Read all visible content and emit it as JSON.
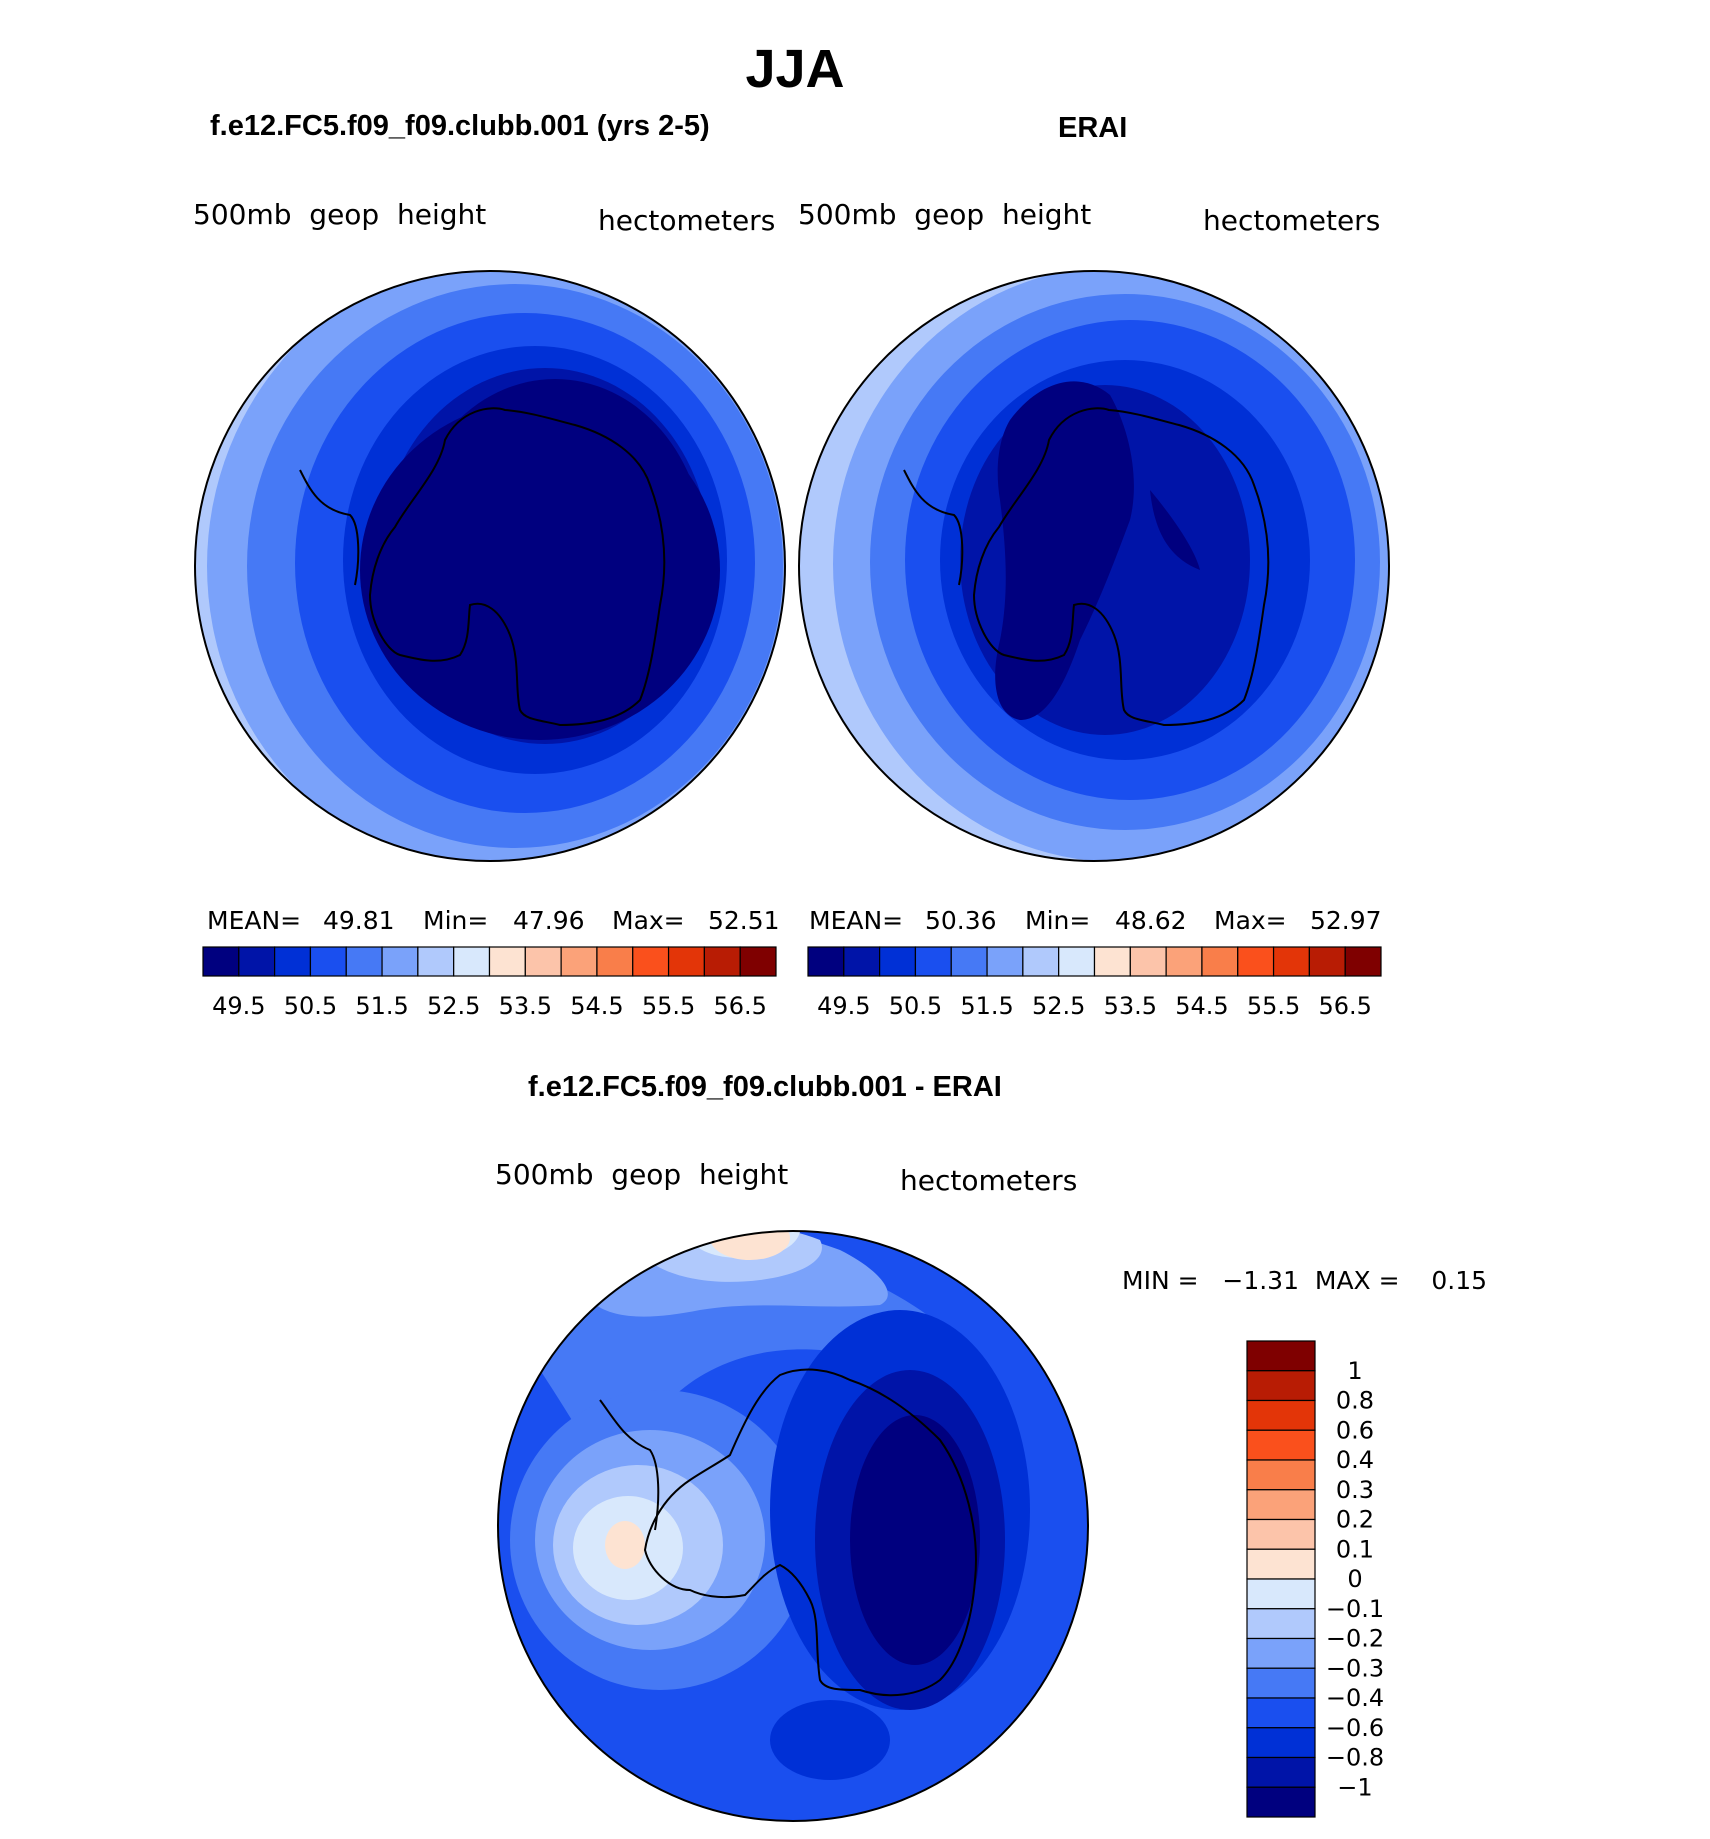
{
  "title": "JJA",
  "panels": [
    {
      "heading": "f.e12.FC5.f09_f09.clubb.001 (yrs 2-5)",
      "variable": "500mb  geop  height",
      "units": "hectometers",
      "stats": {
        "mean_label": "MEAN=",
        "mean": "49.81",
        "min_label": "Min=",
        "min": "47.96",
        "max_label": "Max=",
        "max": "52.51"
      }
    },
    {
      "heading": "ERAI",
      "variable": "500mb  geop  height",
      "units": "hectometers",
      "stats": {
        "mean_label": "MEAN=",
        "mean": "50.36",
        "min_label": "Min=",
        "min": "48.62",
        "max_label": "Max=",
        "max": "52.97"
      }
    }
  ],
  "diff_panel": {
    "heading": "f.e12.FC5.f09_f09.clubb.001 - ERAI",
    "variable": "500mb  geop  height",
    "units": "hectometers",
    "minmax": "MIN =   −1.31  MAX =    0.15"
  },
  "colorbar_top": {
    "colors": [
      "#00007f",
      "#0014a8",
      "#0030d6",
      "#1a4fef",
      "#4679f5",
      "#7aa2fa",
      "#b0c9fc",
      "#d8e8fc",
      "#fde3d2",
      "#fcc4aa",
      "#fba279",
      "#f97e4a",
      "#fa501c",
      "#e33508",
      "#b81c04",
      "#7f0000"
    ],
    "labels": [
      "49.5",
      "50.5",
      "51.5",
      "52.5",
      "53.5",
      "54.5",
      "55.5",
      "56.5"
    ]
  },
  "colorbar_diff": {
    "colors": [
      "#7f0000",
      "#b81c04",
      "#e33508",
      "#fa501c",
      "#f97e4a",
      "#fba279",
      "#fcc4aa",
      "#fde3d2",
      "#d8e8fc",
      "#b0c9fc",
      "#7aa2fa",
      "#4679f5",
      "#1a4fef",
      "#0030d6",
      "#0014a8",
      "#00007f"
    ],
    "labels": [
      "1",
      "0.8",
      "0.6",
      "0.4",
      "0.3",
      "0.2",
      "0.1",
      "0",
      "−0.1",
      "−0.2",
      "−0.3",
      "−0.4",
      "−0.6",
      "−0.8",
      "−1"
    ]
  }
}
